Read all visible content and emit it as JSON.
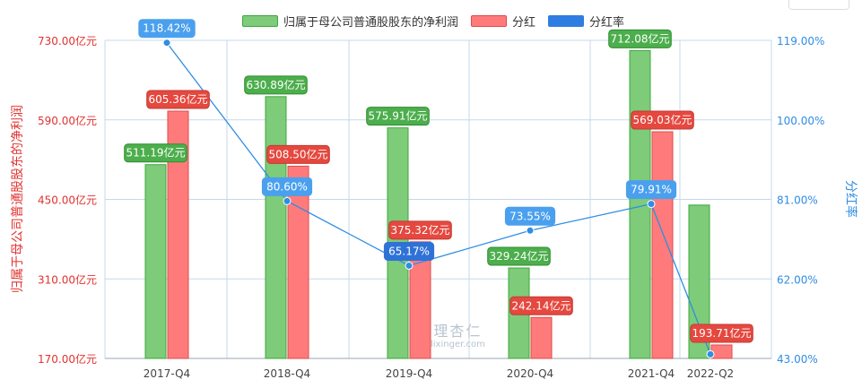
{
  "legend": {
    "profit": "归属于母公司普通股股东的净利润",
    "dividend": "分红",
    "rate": "分红率"
  },
  "watermark": {
    "main": "理杏仁",
    "sub": "lixinger.com"
  },
  "colors": {
    "profit_fill": "#7ecb7a",
    "profit_stroke": "#3aa93a",
    "profit_label": "#4cae4c",
    "dividend_fill": "#ff7b7b",
    "dividend_stroke": "#e04a4a",
    "dividend_label": "#e5483f",
    "rate_line": "#2f8de4",
    "rate_label": "#4aa0ee",
    "rate_label_dark": "#2f72d6",
    "left_axis": "#e0332f",
    "right_axis": "#2f8de4",
    "grid": "#c5d8ec",
    "axis_text": "#444444"
  },
  "chart_data": {
    "type": "bar",
    "categories": [
      "2017-Q4",
      "2018-Q4",
      "2019-Q4",
      "2020-Q4",
      "2021-Q4",
      "2022-Q2"
    ],
    "y_left": {
      "label": "归属于母公司普通股股东的净利润",
      "ticks": [
        "730.00亿元",
        "590.00亿元",
        "450.00亿元",
        "310.00亿元",
        "170.00亿元"
      ],
      "ylim": [
        170,
        730
      ]
    },
    "y_right": {
      "label": "分红率",
      "ticks": [
        "119.00%",
        "100.00%",
        "81.00%",
        "62.00%",
        "43.00%"
      ],
      "ylim": [
        43,
        119
      ]
    },
    "series": [
      {
        "name": "归属于母公司普通股股东的净利润",
        "kind": "bar",
        "values": [
          511.19,
          630.89,
          575.91,
          329.24,
          712.08,
          440
        ],
        "labels": [
          "511.19亿元",
          "630.89亿元",
          "575.91亿元",
          "329.24亿元",
          "712.08亿元",
          null
        ]
      },
      {
        "name": "分红",
        "kind": "bar",
        "values": [
          605.36,
          508.5,
          375.32,
          242.14,
          569.03,
          193.71
        ],
        "labels": [
          "605.36亿元",
          "508.50亿元",
          "375.32亿元",
          "242.14亿元",
          "569.03亿元",
          "193.71亿元"
        ]
      },
      {
        "name": "分红率",
        "kind": "line",
        "values": [
          118.42,
          80.6,
          65.17,
          73.55,
          79.91,
          44.0
        ],
        "labels": [
          "118.42%",
          "80.60%",
          "65.17%",
          "73.55%",
          "79.91%",
          null
        ]
      }
    ],
    "grid": true,
    "legend_position": "top-center"
  }
}
